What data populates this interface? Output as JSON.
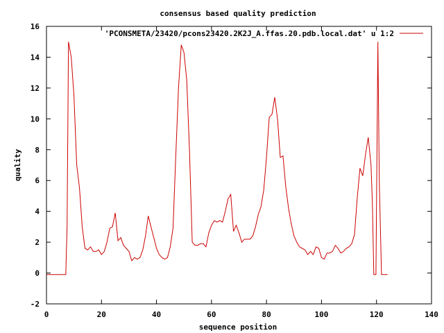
{
  "chart_data": {
    "type": "line",
    "title": "consensus based quality prediction",
    "xlabel": "sequence position",
    "ylabel": "quality",
    "xlim": [
      0,
      140
    ],
    "ylim": [
      -2,
      16
    ],
    "xticks": [
      0,
      20,
      40,
      60,
      80,
      100,
      120,
      140
    ],
    "yticks": [
      -2,
      0,
      2,
      4,
      6,
      8,
      10,
      12,
      14,
      16
    ],
    "grid": false,
    "legend_position": "top-right",
    "series": [
      {
        "name": "'PCONSMETA/23420/pcons23420.2K2J_A.ffas.20.pdb.local.dat' u 1:2",
        "color": "#cc0000",
        "points": [
          [
            0,
            -0.1
          ],
          [
            7,
            -0.1
          ],
          [
            7.5,
            3.0
          ],
          [
            8,
            15.0
          ],
          [
            9,
            14.0
          ],
          [
            10,
            11.5
          ],
          [
            11,
            7.0
          ],
          [
            12,
            5.5
          ],
          [
            13,
            3.0
          ],
          [
            14,
            1.6
          ],
          [
            15,
            1.5
          ],
          [
            16,
            1.7
          ],
          [
            17,
            1.4
          ],
          [
            18,
            1.4
          ],
          [
            19,
            1.5
          ],
          [
            20,
            1.2
          ],
          [
            21,
            1.4
          ],
          [
            22,
            2.0
          ],
          [
            23,
            2.9
          ],
          [
            24,
            3.0
          ],
          [
            25,
            3.9
          ],
          [
            26,
            2.1
          ],
          [
            27,
            2.3
          ],
          [
            28,
            1.8
          ],
          [
            29,
            1.6
          ],
          [
            30,
            1.4
          ],
          [
            31,
            0.8
          ],
          [
            32,
            1.0
          ],
          [
            33,
            0.9
          ],
          [
            34,
            1.0
          ],
          [
            35,
            1.5
          ],
          [
            36,
            2.4
          ],
          [
            37,
            3.7
          ],
          [
            38,
            3.0
          ],
          [
            39,
            2.3
          ],
          [
            40,
            1.6
          ],
          [
            41,
            1.2
          ],
          [
            42,
            1.0
          ],
          [
            43,
            0.9
          ],
          [
            44,
            1.0
          ],
          [
            45,
            1.7
          ],
          [
            46,
            2.9
          ],
          [
            47,
            7.5
          ],
          [
            48,
            12.0
          ],
          [
            49,
            14.8
          ],
          [
            50,
            14.3
          ],
          [
            51,
            12.5
          ],
          [
            52,
            8.0
          ],
          [
            53,
            2.0
          ],
          [
            54,
            1.8
          ],
          [
            55,
            1.8
          ],
          [
            56,
            1.9
          ],
          [
            57,
            1.9
          ],
          [
            58,
            1.7
          ],
          [
            59,
            2.6
          ],
          [
            60,
            3.1
          ],
          [
            61,
            3.4
          ],
          [
            62,
            3.3
          ],
          [
            63,
            3.4
          ],
          [
            64,
            3.3
          ],
          [
            65,
            4.0
          ],
          [
            66,
            4.8
          ],
          [
            67,
            5.1
          ],
          [
            68,
            2.7
          ],
          [
            69,
            3.1
          ],
          [
            70,
            2.6
          ],
          [
            71,
            2.0
          ],
          [
            72,
            2.2
          ],
          [
            73,
            2.2
          ],
          [
            74,
            2.2
          ],
          [
            75,
            2.4
          ],
          [
            76,
            3.0
          ],
          [
            77,
            3.8
          ],
          [
            78,
            4.3
          ],
          [
            79,
            5.4
          ],
          [
            80,
            7.5
          ],
          [
            81,
            10.1
          ],
          [
            82,
            10.3
          ],
          [
            83,
            11.4
          ],
          [
            84,
            10.0
          ],
          [
            85,
            7.5
          ],
          [
            86,
            7.6
          ],
          [
            87,
            5.6
          ],
          [
            88,
            4.2
          ],
          [
            89,
            3.2
          ],
          [
            90,
            2.4
          ],
          [
            91,
            2.0
          ],
          [
            92,
            1.7
          ],
          [
            93,
            1.6
          ],
          [
            94,
            1.5
          ],
          [
            95,
            1.2
          ],
          [
            96,
            1.4
          ],
          [
            97,
            1.2
          ],
          [
            98,
            1.7
          ],
          [
            99,
            1.6
          ],
          [
            100,
            1.0
          ],
          [
            101,
            0.9
          ],
          [
            102,
            1.3
          ],
          [
            103,
            1.3
          ],
          [
            104,
            1.4
          ],
          [
            105,
            1.8
          ],
          [
            106,
            1.6
          ],
          [
            107,
            1.3
          ],
          [
            108,
            1.4
          ],
          [
            109,
            1.6
          ],
          [
            110,
            1.7
          ],
          [
            111,
            1.9
          ],
          [
            112,
            2.5
          ],
          [
            113,
            4.9
          ],
          [
            114,
            6.8
          ],
          [
            115,
            6.3
          ],
          [
            116,
            7.7
          ],
          [
            117,
            8.8
          ],
          [
            118,
            7.0
          ],
          [
            118.5,
            4.5
          ],
          [
            119,
            -0.1
          ],
          [
            119.8,
            -0.1
          ],
          [
            120.5,
            15.0
          ],
          [
            121,
            6.0
          ],
          [
            121.8,
            -0.1
          ],
          [
            124,
            -0.1
          ]
        ]
      }
    ]
  }
}
